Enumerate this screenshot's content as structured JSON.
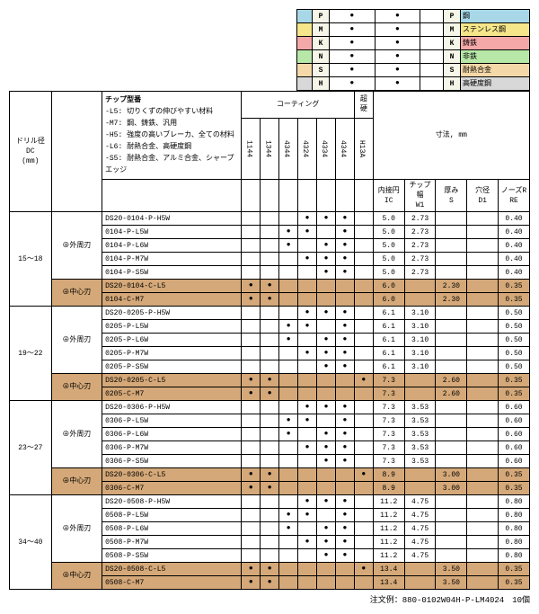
{
  "legend": {
    "rows": [
      {
        "c": "c-p",
        "code": "P",
        "lbl": "鋼"
      },
      {
        "c": "c-m",
        "code": "M",
        "lbl": "ステンレス鋼"
      },
      {
        "c": "c-k",
        "code": "K",
        "lbl": "鋳鉄"
      },
      {
        "c": "c-n",
        "code": "N",
        "lbl": "非鉄"
      },
      {
        "c": "c-s",
        "code": "S",
        "lbl": "耐熱合金"
      },
      {
        "c": "c-h",
        "code": "H",
        "lbl": "高硬度鋼"
      }
    ]
  },
  "header": {
    "drill": "ドリル径\nDC\n(mm)",
    "chip_title": "チップ型番",
    "chip_notes": "-L5: 切りくずの伸びやすい材料\n-M7: 鋼、鋳鉄、汎用\n-H5: 強度の高いブレーカ、全ての材料\n-L6: 耐熱合金、高硬度鋼\n-S5: 耐熱合金、アルミ合金、シャープエッジ",
    "coating": "コーティング",
    "carbide": "超硬",
    "dims": "寸法, mm",
    "grades": [
      "1144",
      "1344",
      "4344",
      "4324",
      "4334",
      "4344",
      "H13A"
    ],
    "dim_cols": [
      "内接円\nIC",
      "チップ幅\nW1",
      "厚み\nS",
      "穴径\nD1",
      "ノーズR\nRE"
    ]
  },
  "groups": [
    {
      "dc": "15～18",
      "outer": [
        {
          "pn": "DS20-0104-P-H5W",
          "g": [
            0,
            0,
            0,
            1,
            1,
            1,
            0
          ],
          "d": [
            "5.0",
            "2.73",
            "",
            "",
            "0.40"
          ]
        },
        {
          "pn": "0104-P-L5W",
          "g": [
            0,
            0,
            1,
            1,
            0,
            1,
            0
          ],
          "d": [
            "5.0",
            "2.73",
            "",
            "",
            "0.40"
          ]
        },
        {
          "pn": "0104-P-L6W",
          "g": [
            0,
            0,
            1,
            0,
            1,
            1,
            0
          ],
          "d": [
            "5.0",
            "2.73",
            "",
            "",
            "0.40"
          ]
        },
        {
          "pn": "0104-P-M7W",
          "g": [
            0,
            0,
            0,
            1,
            1,
            1,
            0
          ],
          "d": [
            "5.0",
            "2.73",
            "",
            "",
            "0.40"
          ]
        },
        {
          "pn": "0104-P-S5W",
          "g": [
            0,
            0,
            0,
            0,
            1,
            1,
            0
          ],
          "d": [
            "5.0",
            "2.73",
            "",
            "",
            "0.40"
          ]
        }
      ],
      "center": [
        {
          "pn": "DS20-0104-C-L5",
          "g": [
            1,
            1,
            0,
            0,
            0,
            0,
            0
          ],
          "d": [
            "6.0",
            "",
            "2.30",
            "",
            "0.35"
          ]
        },
        {
          "pn": "0104-C-M7",
          "g": [
            1,
            1,
            0,
            0,
            0,
            0,
            0
          ],
          "d": [
            "6.0",
            "",
            "2.30",
            "",
            "0.35"
          ]
        }
      ]
    },
    {
      "dc": "19～22",
      "outer": [
        {
          "pn": "DS20-0205-P-H5W",
          "g": [
            0,
            0,
            0,
            1,
            1,
            1,
            0
          ],
          "d": [
            "6.1",
            "3.10",
            "",
            "",
            "0.50"
          ]
        },
        {
          "pn": "0205-P-L5W",
          "g": [
            0,
            0,
            1,
            1,
            0,
            1,
            0
          ],
          "d": [
            "6.1",
            "3.10",
            "",
            "",
            "0.50"
          ]
        },
        {
          "pn": "0205-P-L6W",
          "g": [
            0,
            0,
            1,
            0,
            1,
            1,
            0
          ],
          "d": [
            "6.1",
            "3.10",
            "",
            "",
            "0.50"
          ]
        },
        {
          "pn": "0205-P-M7W",
          "g": [
            0,
            0,
            0,
            1,
            1,
            1,
            0
          ],
          "d": [
            "6.1",
            "3.10",
            "",
            "",
            "0.50"
          ]
        },
        {
          "pn": "0205-P-S5W",
          "g": [
            0,
            0,
            0,
            0,
            1,
            1,
            0
          ],
          "d": [
            "6.1",
            "3.10",
            "",
            "",
            "0.50"
          ]
        }
      ],
      "center": [
        {
          "pn": "DS20-0205-C-L5",
          "g": [
            1,
            1,
            0,
            0,
            0,
            0,
            1
          ],
          "d": [
            "7.3",
            "",
            "2.60",
            "",
            "0.35"
          ]
        },
        {
          "pn": "0205-C-M7",
          "g": [
            1,
            1,
            0,
            0,
            0,
            0,
            0
          ],
          "d": [
            "7.3",
            "",
            "2.60",
            "",
            "0.35"
          ]
        }
      ]
    },
    {
      "dc": "23～27",
      "outer": [
        {
          "pn": "DS20-0306-P-H5W",
          "g": [
            0,
            0,
            0,
            1,
            1,
            1,
            0
          ],
          "d": [
            "7.3",
            "3.53",
            "",
            "",
            "0.60"
          ]
        },
        {
          "pn": "0306-P-L5W",
          "g": [
            0,
            0,
            1,
            1,
            0,
            1,
            0
          ],
          "d": [
            "7.3",
            "3.53",
            "",
            "",
            "0.60"
          ]
        },
        {
          "pn": "0306-P-L6W",
          "g": [
            0,
            0,
            1,
            0,
            1,
            1,
            0
          ],
          "d": [
            "7.3",
            "3.53",
            "",
            "",
            "0.60"
          ]
        },
        {
          "pn": "0306-P-M7W",
          "g": [
            0,
            0,
            0,
            1,
            1,
            1,
            0
          ],
          "d": [
            "7.3",
            "3.53",
            "",
            "",
            "0.60"
          ]
        },
        {
          "pn": "0306-P-S5W",
          "g": [
            0,
            0,
            0,
            0,
            1,
            1,
            0
          ],
          "d": [
            "7.3",
            "3.53",
            "",
            "",
            "0.60"
          ]
        }
      ],
      "center": [
        {
          "pn": "DS20-0306-C-L5",
          "g": [
            1,
            1,
            0,
            0,
            0,
            0,
            1
          ],
          "d": [
            "8.9",
            "",
            "3.00",
            "",
            "0.35"
          ]
        },
        {
          "pn": "0306-C-M7",
          "g": [
            1,
            1,
            0,
            0,
            0,
            0,
            0
          ],
          "d": [
            "8.9",
            "",
            "3.00",
            "",
            "0.35"
          ]
        }
      ]
    },
    {
      "dc": "34～40",
      "outer": [
        {
          "pn": "DS20-0508-P-H5W",
          "g": [
            0,
            0,
            0,
            1,
            1,
            1,
            0
          ],
          "d": [
            "11.2",
            "4.75",
            "",
            "",
            "0.80"
          ]
        },
        {
          "pn": "0508-P-L5W",
          "g": [
            0,
            0,
            1,
            1,
            0,
            1,
            0
          ],
          "d": [
            "11.2",
            "4.75",
            "",
            "",
            "0.80"
          ]
        },
        {
          "pn": "0508-P-L6W",
          "g": [
            0,
            0,
            1,
            0,
            1,
            1,
            0
          ],
          "d": [
            "11.2",
            "4.75",
            "",
            "",
            "0.80"
          ]
        },
        {
          "pn": "0508-P-M7W",
          "g": [
            0,
            0,
            0,
            1,
            1,
            1,
            0
          ],
          "d": [
            "11.2",
            "4.75",
            "",
            "",
            "0.80"
          ]
        },
        {
          "pn": "0508-P-S5W",
          "g": [
            0,
            0,
            0,
            0,
            1,
            1,
            0
          ],
          "d": [
            "11.2",
            "4.75",
            "",
            "",
            "0.80"
          ]
        }
      ],
      "center": [
        {
          "pn": "DS20-0508-C-L5",
          "g": [
            1,
            1,
            0,
            0,
            0,
            0,
            1
          ],
          "d": [
            "13.4",
            "",
            "3.50",
            "",
            "0.35"
          ]
        },
        {
          "pn": "0508-C-M7",
          "g": [
            1,
            1,
            0,
            0,
            0,
            0,
            0
          ],
          "d": [
            "13.4",
            "",
            "3.50",
            "",
            "0.35"
          ]
        }
      ]
    }
  ],
  "label": {
    "outer": "⊕外周刃",
    "center": "⊕中心刃"
  },
  "note": "注文例：880-0102W04H-P-LM4024　10個"
}
